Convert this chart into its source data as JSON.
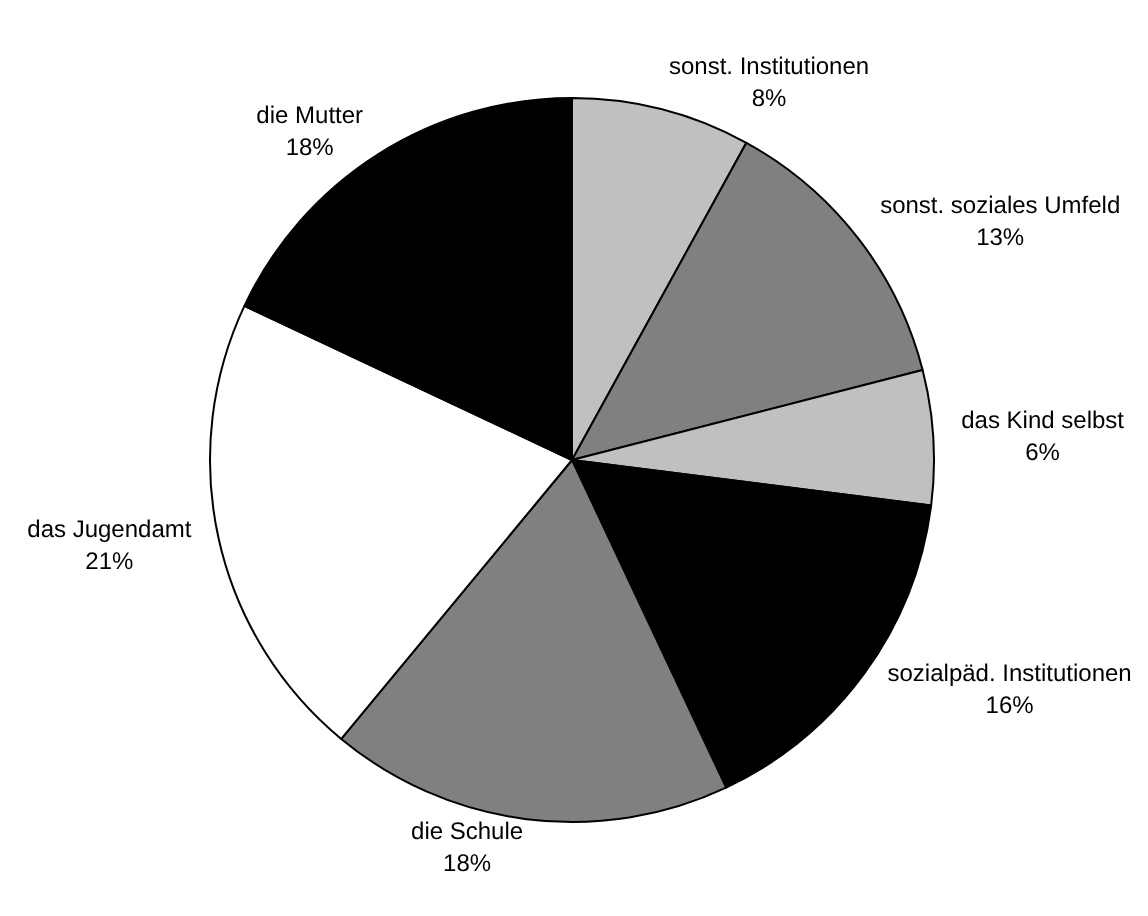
{
  "chart_data": {
    "type": "pie",
    "categories": [
      "sonst. Institutionen",
      "sonst. soziales Umfeld",
      "das Kind selbst",
      "sozialpäd. Institutionen",
      "die Schule",
      "das Jugendamt",
      "die Mutter"
    ],
    "values": [
      8,
      13,
      6,
      16,
      18,
      21,
      18
    ],
    "value_labels": [
      "8%",
      "13%",
      "6%",
      "16%",
      "18%",
      "21%",
      "18%"
    ],
    "colors": [
      "#c0c0c0",
      "#808080",
      "#c0c0c0",
      "#000000",
      "#808080",
      "#ffffff",
      "#000000"
    ],
    "legend": false
  }
}
